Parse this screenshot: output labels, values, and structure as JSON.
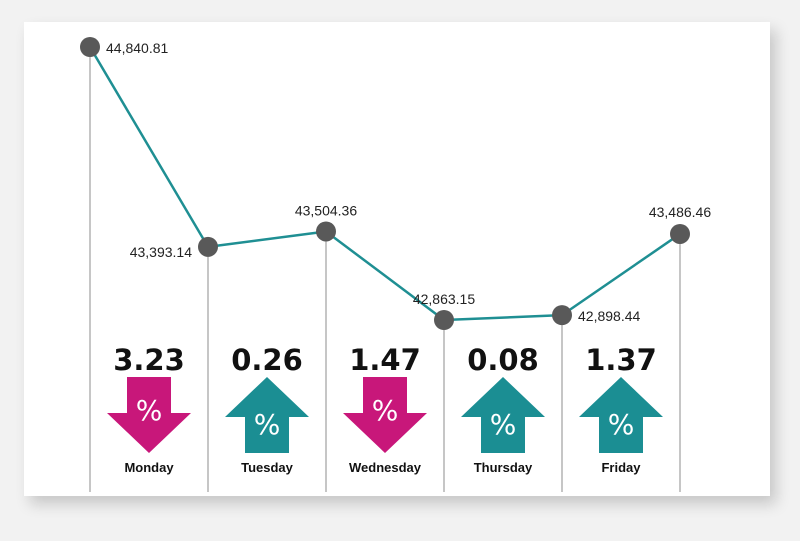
{
  "chart_data": {
    "type": "line",
    "title": "",
    "categories": [
      "Monday",
      "Tuesday",
      "Wednesday",
      "Thursday",
      "Friday"
    ],
    "x": [
      0,
      1,
      2,
      3,
      4,
      5
    ],
    "values": [
      44840.81,
      43393.14,
      43504.36,
      42863.15,
      42898.44,
      43486.46
    ],
    "value_labels": [
      "44,840.81",
      "43,393.14",
      "43,504.36",
      "42,863.15",
      "42,898.44",
      "43,486.46"
    ],
    "ylim": [
      42400,
      45000
    ],
    "grid": false,
    "daily_change": [
      {
        "day": "Monday",
        "percent": "3.23",
        "direction": "down"
      },
      {
        "day": "Tuesday",
        "percent": "0.26",
        "direction": "up"
      },
      {
        "day": "Wednesday",
        "percent": "1.47",
        "direction": "down"
      },
      {
        "day": "Thursday",
        "percent": "0.08",
        "direction": "up"
      },
      {
        "day": "Friday",
        "percent": "1.37",
        "direction": "up"
      }
    ],
    "percent_symbol": "%"
  },
  "colors": {
    "line": "#1f8f93",
    "marker": "#595959",
    "up": "#1b8e93",
    "down": "#c8177a",
    "divider": "#8c8c8c"
  }
}
